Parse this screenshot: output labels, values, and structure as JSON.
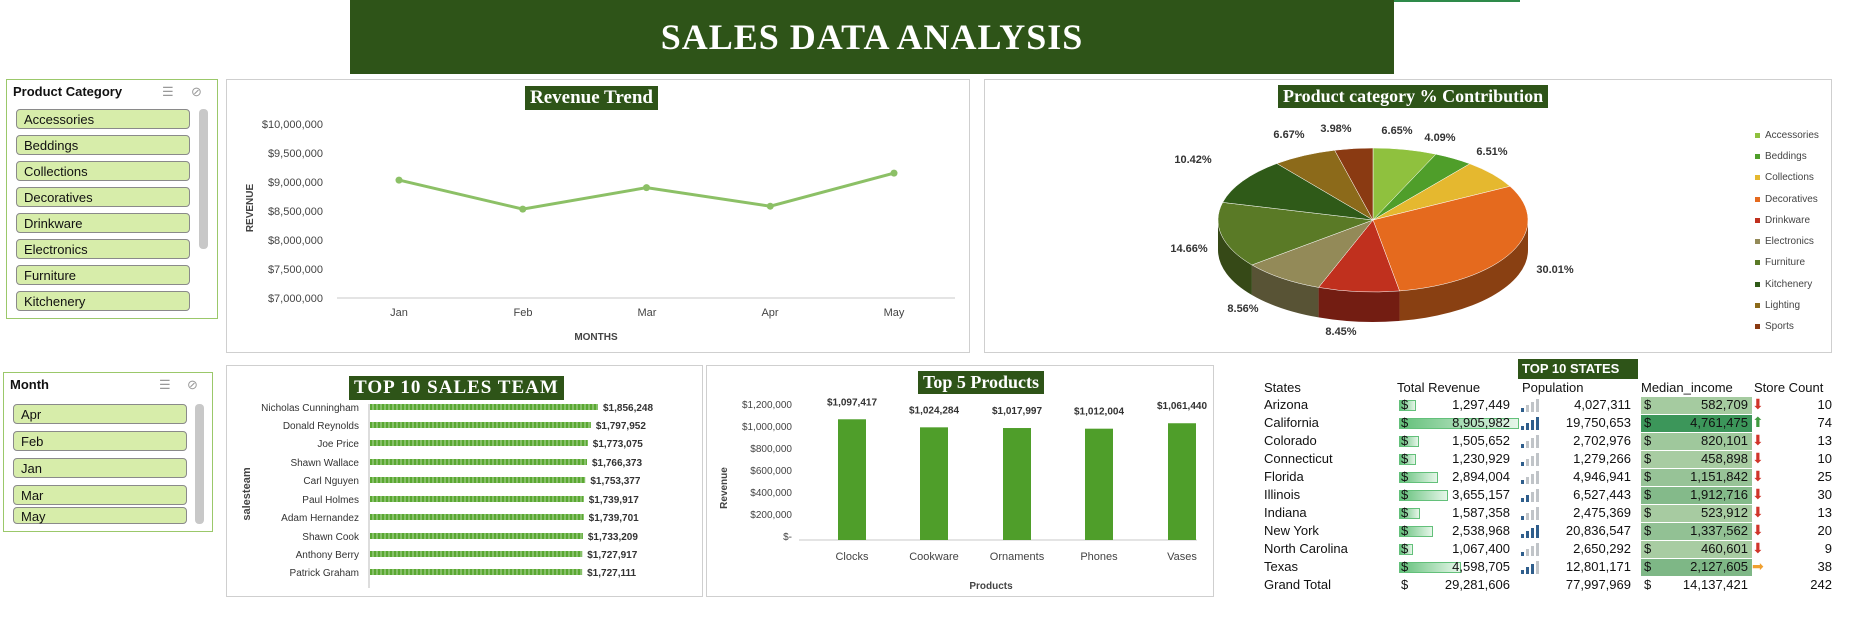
{
  "dashboard_title": "SALES DATA ANALYSIS",
  "slicer_category": {
    "title": "Product Category",
    "items": [
      "Accessories",
      "Beddings",
      "Collections",
      "Decoratives",
      "Drinkware",
      "Electronics",
      "Furniture",
      "Kitchenery"
    ]
  },
  "slicer_month": {
    "title": "Month",
    "items": [
      "Apr",
      "Feb",
      "Jan",
      "Mar",
      "May"
    ]
  },
  "revenue_trend": {
    "title": "Revenue Trend",
    "ylabel": "REVENUE",
    "xlabel": "MONTHS",
    "y_ticks": [
      "$10,000,000",
      "$9,500,000",
      "$9,000,000",
      "$8,500,000",
      "$8,000,000",
      "$7,500,000",
      "$7,000,000"
    ],
    "months": [
      "Jan",
      "Feb",
      "Mar",
      "Apr",
      "May"
    ]
  },
  "pie": {
    "title": "Product category % Contribution",
    "labels": [
      "6.65%",
      "4.09%",
      "6.51%",
      "30.01%",
      "8.45%",
      "8.56%",
      "14.66%",
      "10.42%",
      "6.67%",
      "3.98%"
    ],
    "legend": [
      "Accessories",
      "Beddings",
      "Collections",
      "Decoratives",
      "Drinkware",
      "Electronics",
      "Furniture",
      "Kitchenery",
      "Lighting",
      "Sports"
    ]
  },
  "sales_team": {
    "title": "TOP 10 SALES TEAM",
    "ylabel": "salesteam",
    "names": [
      "Nicholas Cunningham",
      "Donald Reynolds",
      "Joe Price",
      "Shawn Wallace",
      "Carl Nguyen",
      "Paul Holmes",
      "Adam Hernandez",
      "Shawn Cook",
      "Anthony Berry",
      "Patrick Graham"
    ],
    "labels": [
      "$1,856,248",
      "$1,797,952",
      "$1,773,075",
      "$1,766,373",
      "$1,753,377",
      "$1,739,917",
      "$1,739,701",
      "$1,733,209",
      "$1,727,917",
      "$1,727,111"
    ]
  },
  "top_products": {
    "title": "Top 5 Products",
    "ylabel": "Revenue",
    "xlabel": "Products",
    "y_ticks": [
      "$1,200,000",
      "$1,000,000",
      "$800,000",
      "$600,000",
      "$400,000",
      "$200,000",
      "$-"
    ],
    "names": [
      "Clocks",
      "Cookware",
      "Ornaments",
      "Phones",
      "Vases"
    ],
    "labels": [
      "$1,097,417",
      "$1,024,284",
      "$1,017,997",
      "$1,012,004",
      "$1,061,440"
    ]
  },
  "states_table": {
    "title": "TOP 10 STATES",
    "headers": [
      "States",
      "Total Revenue",
      "Population",
      "Median_income",
      "Store Count"
    ],
    "rows": [
      {
        "state": "Arizona",
        "revenue": "1,297,449",
        "population": "4,027,311",
        "income": "582,709",
        "stores": "10"
      },
      {
        "state": "California",
        "revenue": "8,905,982",
        "population": "19,750,653",
        "income": "4,761,475",
        "stores": "74"
      },
      {
        "state": "Colorado",
        "revenue": "1,505,652",
        "population": "2,702,976",
        "income": "820,101",
        "stores": "13"
      },
      {
        "state": "Connecticut",
        "revenue": "1,230,929",
        "population": "1,279,266",
        "income": "458,898",
        "stores": "10"
      },
      {
        "state": "Florida",
        "revenue": "2,894,004",
        "population": "4,946,941",
        "income": "1,151,842",
        "stores": "25"
      },
      {
        "state": "Illinois",
        "revenue": "3,655,157",
        "population": "6,527,443",
        "income": "1,912,716",
        "stores": "30"
      },
      {
        "state": "Indiana",
        "revenue": "1,587,358",
        "population": "2,475,369",
        "income": "523,912",
        "stores": "13"
      },
      {
        "state": "New York",
        "revenue": "2,538,968",
        "population": "20,836,547",
        "income": "1,337,562",
        "stores": "20"
      },
      {
        "state": "North Carolina",
        "revenue": "1,067,400",
        "population": "2,650,292",
        "income": "460,601",
        "stores": "9"
      },
      {
        "state": "Texas",
        "revenue": "4,598,705",
        "population": "12,801,171",
        "income": "2,127,605",
        "stores": "38"
      }
    ],
    "total": {
      "state": "Grand Total",
      "revenue": "29,281,606",
      "population": "77,997,969",
      "income": "14,137,421",
      "stores": "242"
    },
    "currency": "$"
  },
  "chart_data": [
    {
      "type": "line",
      "title": "Revenue Trend",
      "xlabel": "MONTHS",
      "ylabel": "REVENUE",
      "categories": [
        "Jan",
        "Feb",
        "Mar",
        "Apr",
        "May"
      ],
      "values": [
        9050000,
        8550000,
        8920000,
        8600000,
        9170000
      ],
      "ylim": [
        7000000,
        10000000
      ],
      "color": "#8cc066"
    },
    {
      "type": "pie",
      "title": "Product category % Contribution",
      "categories": [
        "Accessories",
        "Beddings",
        "Collections",
        "Decoratives",
        "Drinkware",
        "Electronics",
        "Furniture",
        "Kitchenery",
        "Lighting",
        "Sports"
      ],
      "values": [
        6.65,
        4.09,
        6.51,
        30.01,
        8.45,
        8.56,
        14.66,
        10.42,
        6.67,
        3.98
      ],
      "colors": [
        "#8fc13e",
        "#4f9e2a",
        "#e5b82f",
        "#e56a1e",
        "#c0301e",
        "#938a58",
        "#5a7a26",
        "#2f5a18",
        "#8c6a1a",
        "#8a3a12"
      ],
      "legend": "right"
    },
    {
      "type": "bar",
      "title": "TOP 10 SALES TEAM",
      "ylabel": "salesteam",
      "categories": [
        "Nicholas Cunningham",
        "Donald Reynolds",
        "Joe Price",
        "Shawn Wallace",
        "Carl Nguyen",
        "Paul Holmes",
        "Adam Hernandez",
        "Shawn Cook",
        "Anthony Berry",
        "Patrick Graham"
      ],
      "values": [
        1856248,
        1797952,
        1773075,
        1766373,
        1753377,
        1739917,
        1739701,
        1733209,
        1727917,
        1727111
      ],
      "color": "#5aa832"
    },
    {
      "type": "bar",
      "title": "Top 5 Products",
      "xlabel": "Products",
      "ylabel": "Revenue",
      "categories": [
        "Clocks",
        "Cookware",
        "Ornaments",
        "Phones",
        "Vases"
      ],
      "values": [
        1097417,
        1024284,
        1017997,
        1012004,
        1061440
      ],
      "ylim": [
        0,
        1200000
      ],
      "color": "#4f9e2a"
    }
  ],
  "colors": {
    "banner": "#2e5418",
    "accent": "#8cc066",
    "bar": "#4f9e2a",
    "slicer_item": "#d7edaa"
  },
  "table_metrics": {
    "revenue": [
      1297449,
      8905982,
      1505652,
      1230929,
      2894004,
      3655157,
      1587358,
      2538968,
      1067400,
      4598705
    ],
    "population": [
      4027311,
      19750653,
      2702976,
      1279266,
      4946941,
      6527443,
      2475369,
      20836547,
      2650292,
      12801171
    ],
    "income": [
      582709,
      4761475,
      820101,
      458898,
      1151842,
      1912716,
      523912,
      1337562,
      460601,
      2127605
    ],
    "stores": [
      10,
      74,
      13,
      10,
      25,
      30,
      13,
      20,
      9,
      38
    ],
    "store_icons": [
      "arrow-down-icon",
      "arrow-up-icon",
      "arrow-down-icon",
      "arrow-down-icon",
      "arrow-down-icon",
      "arrow-down-icon",
      "arrow-down-icon",
      "arrow-down-icon",
      "arrow-down-icon",
      "arrow-right-icon"
    ]
  }
}
